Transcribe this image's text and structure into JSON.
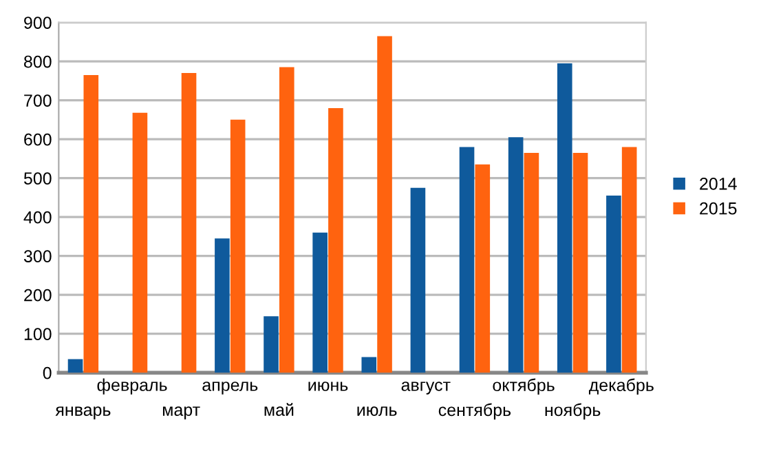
{
  "chart_data": {
    "type": "bar",
    "categories": [
      "январь",
      "февраль",
      "март",
      "апрель",
      "май",
      "июнь",
      "июль",
      "август",
      "сентябрь",
      "октябрь",
      "ноябрь",
      "декабрь"
    ],
    "series": [
      {
        "name": "2014",
        "color": "#0f5a9c",
        "values": [
          35,
          null,
          null,
          345,
          145,
          360,
          40,
          475,
          580,
          605,
          795,
          455
        ]
      },
      {
        "name": "2015",
        "color": "#ff630f",
        "values": [
          765,
          668,
          770,
          650,
          785,
          680,
          865,
          null,
          535,
          565,
          565,
          580
        ]
      }
    ],
    "ylim": [
      0,
      900
    ],
    "yticks": [
      0,
      100,
      200,
      300,
      400,
      500,
      600,
      700,
      800,
      900
    ],
    "grid": "y",
    "legend": "right"
  }
}
